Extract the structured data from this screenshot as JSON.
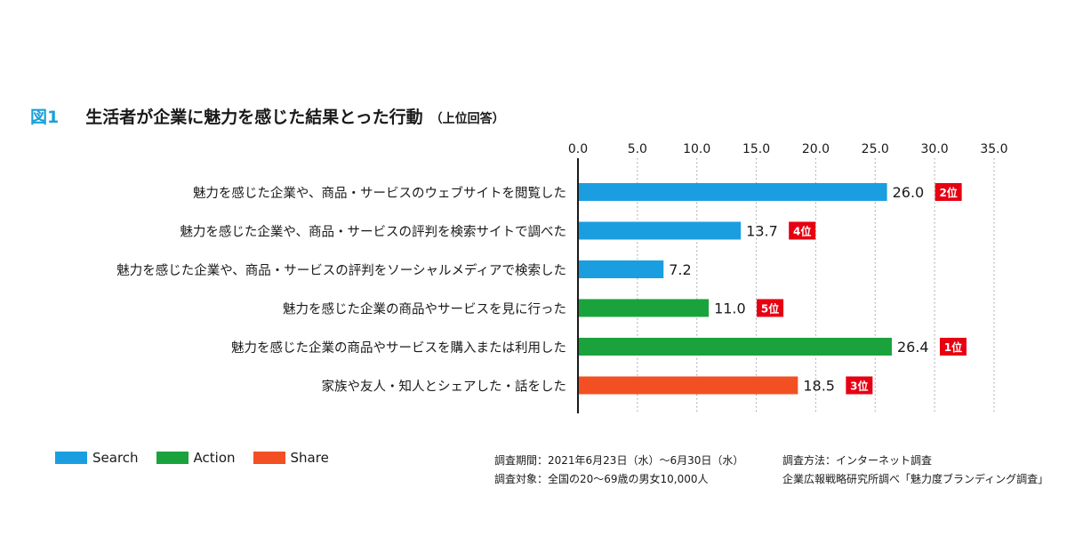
{
  "header": {
    "figure_label": "図1",
    "title": "生活者が企業に魅力を感じた結果とった行動",
    "subtitle": "（上位回答）"
  },
  "chart_data": {
    "type": "bar",
    "orientation": "horizontal",
    "categories": [
      "魅力を感じた企業や、商品・サービスのウェブサイトを閲覧した",
      "魅力を感じた企業や、商品・サービスの評判を検索サイトで調べた",
      "魅力を感じた企業や、商品・サービスの評判をソーシャルメディアで検索した",
      "魅力を感じた企業の商品やサービスを見に行った",
      "魅力を感じた企業の商品やサービスを購入または利用した",
      "家族や友人・知人とシェアした・話をした"
    ],
    "values": [
      26.0,
      13.7,
      7.2,
      11.0,
      26.4,
      18.5
    ],
    "value_labels": [
      "26.0",
      "13.7",
      "7.2",
      "11.0",
      "26.4",
      "18.5"
    ],
    "groups": [
      "Search",
      "Search",
      "Search",
      "Action",
      "Action",
      "Share"
    ],
    "ranks": [
      "2位",
      "4位",
      "",
      "5位",
      "1位",
      "3位"
    ],
    "xlim": [
      0,
      35
    ],
    "xticks": [
      "0.0",
      "5.0",
      "10.0",
      "15.0",
      "20.0",
      "25.0",
      "30.0",
      "35.0"
    ],
    "xtick_values": [
      0,
      5,
      10,
      15,
      20,
      25,
      30,
      35
    ],
    "grid": "vertical-dotted",
    "legend_position": "bottom-left",
    "colors": {
      "Search": "#1a9ee0",
      "Action": "#1aa33c",
      "Share": "#f25022",
      "rank_badge": "#e60012"
    }
  },
  "legend": [
    {
      "name": "Search",
      "color": "#1a9ee0"
    },
    {
      "name": "Action",
      "color": "#1aa33c"
    },
    {
      "name": "Share",
      "color": "#f25022"
    }
  ],
  "notes": {
    "period": "調査期間：2021年6月23日（水）～6月30日（水）",
    "target": "調査対象：全国の20～69歳の男女10,000人",
    "method": "調査方法：インターネット調査",
    "source": "企業広報戦略研究所調べ「魅力度ブランディング調査」"
  }
}
